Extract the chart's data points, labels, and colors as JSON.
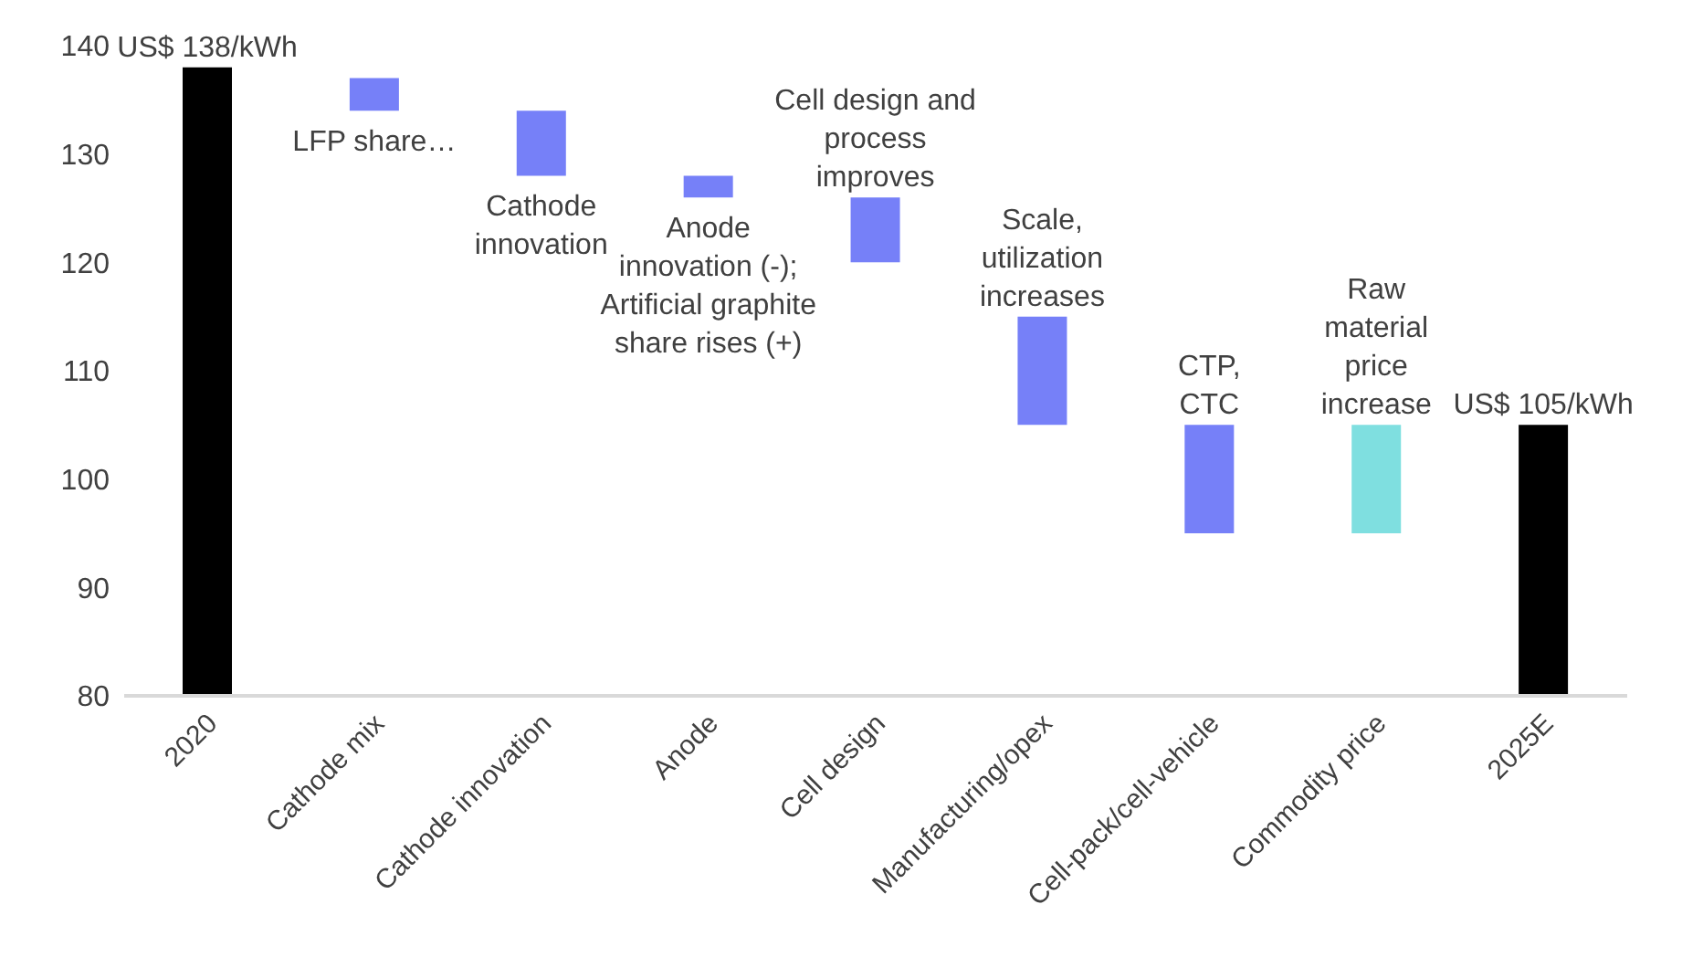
{
  "chart_data": {
    "type": "bar",
    "categories": [
      "2020",
      "Cathode mix",
      "Cathode innovation",
      "Anode",
      "Cell design",
      "Manufacturing/opex",
      "Cell-pack/cell-vehicle",
      "Commodity price",
      "2025E"
    ],
    "base": [
      80,
      137,
      134,
      128,
      126,
      115,
      105,
      95,
      80
    ],
    "values": [
      58,
      -3,
      -6,
      -2,
      -6,
      -10,
      -10,
      10,
      25
    ],
    "colors": [
      "#000000",
      "#7680f8",
      "#7680f8",
      "#7680f8",
      "#7680f8",
      "#7680f8",
      "#7680f8",
      "#7fdfe0",
      "#000000"
    ],
    "value_labels": [
      "US$ 138/kWh",
      null,
      null,
      null,
      null,
      null,
      null,
      null,
      "US$ 105/kWh"
    ],
    "annotations": [
      {
        "text": "LFP share…",
        "x": "Cathode mix",
        "y": 134
      },
      {
        "text": "Cathode\ninnovation",
        "x": "Cathode innovation",
        "y": 128
      },
      {
        "text": "Anode\ninnovation (-);\nArtificial graphite\nshare rises (+)",
        "x": "Anode",
        "y": 126
      },
      {
        "text": "Cell design and\nprocess\nimproves",
        "x": "Cell design",
        "y": 126
      },
      {
        "text": "Scale,\nutilization\nincreases",
        "x": "Manufacturing/opex",
        "y": 115
      },
      {
        "text": "CTP,\nCTC",
        "x": "Cell-pack/cell-vehicle",
        "y": 105
      },
      {
        "text": "Raw\nmaterial\nprice\nincrease",
        "x": "Commodity price",
        "y": 105
      }
    ],
    "ylim": [
      80,
      140
    ],
    "yticks": [
      80,
      90,
      100,
      110,
      120,
      130,
      140
    ],
    "grid": false,
    "legend": false
  }
}
